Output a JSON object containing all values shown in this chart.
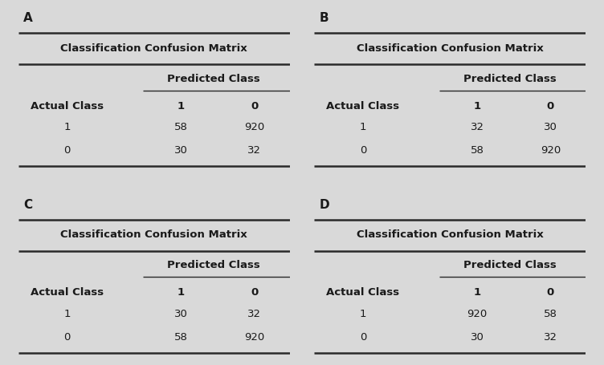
{
  "panels": [
    {
      "label": "A",
      "title": "Classification Confusion Matrix",
      "matrix": [
        [
          "58",
          "920"
        ],
        [
          "30",
          "32"
        ]
      ]
    },
    {
      "label": "B",
      "title": "Classification Confusion Matrix",
      "matrix": [
        [
          "32",
          "30"
        ],
        [
          "58",
          "920"
        ]
      ]
    },
    {
      "label": "C",
      "title": "Classification Confusion Matrix",
      "matrix": [
        [
          "30",
          "32"
        ],
        [
          "58",
          "920"
        ]
      ]
    },
    {
      "label": "D",
      "title": "Classification Confusion Matrix",
      "matrix": [
        [
          "920",
          "58"
        ],
        [
          "30",
          "32"
        ]
      ]
    }
  ],
  "bg_color": "#d9d9d9",
  "header_color": "#1a1a1a",
  "text_color": "#1a1a1a",
  "label_fontsize": 11,
  "title_fontsize": 9.5,
  "data_fontsize": 9.5
}
